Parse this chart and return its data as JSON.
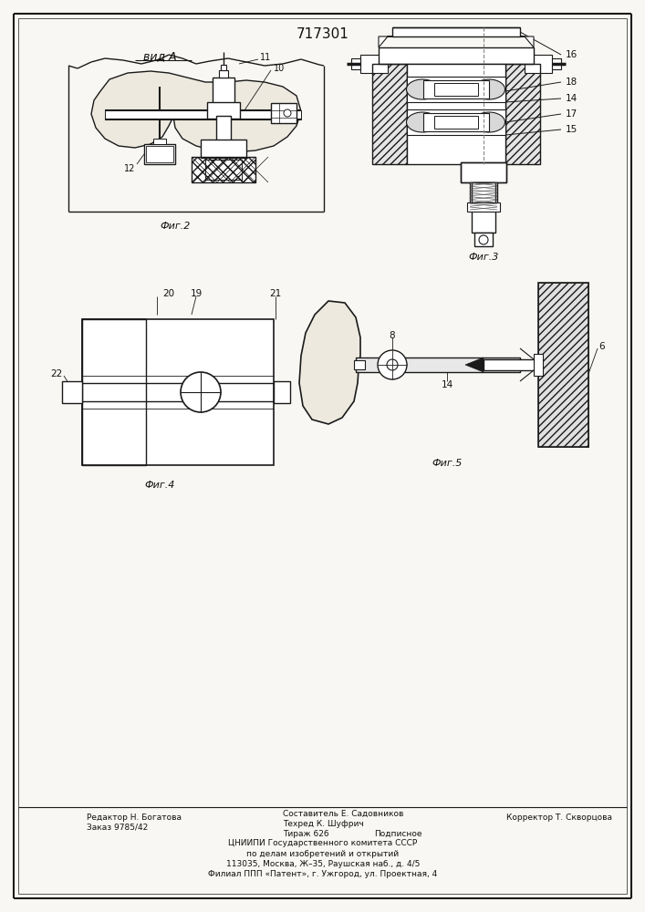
{
  "patent_number": "717301",
  "background_color": "#f8f7f3",
  "line_color": "#1a1a1a",
  "fig_labels": [
    "Фиг.2",
    "Фиг.3",
    "Фиг.4",
    "Фиг.5"
  ],
  "view_label": "вид А",
  "footer_left_line1": "Редактор Н. Богатова",
  "footer_left_line2": "Заказ 9785/42",
  "footer_center_line1": "Составитель Е. Садовников",
  "footer_center_line2": "Техред К. Шуфрич",
  "footer_center_line3": "Тираж 626",
  "footer_center_line4": "Подписное",
  "footer_right_line1": "Корректор Т. Скворцова",
  "footer_org_line1": "ЦНИИПИ Государственного комитета СССР",
  "footer_org_line2": "по делам изобретений и открытий",
  "footer_org_line3": "113035, Москва, Ж–35, Раушская наб., д. 4/5",
  "footer_org_line4": "Филиал ППП «Патент», г. Ужгород, ул. Проектная, 4"
}
